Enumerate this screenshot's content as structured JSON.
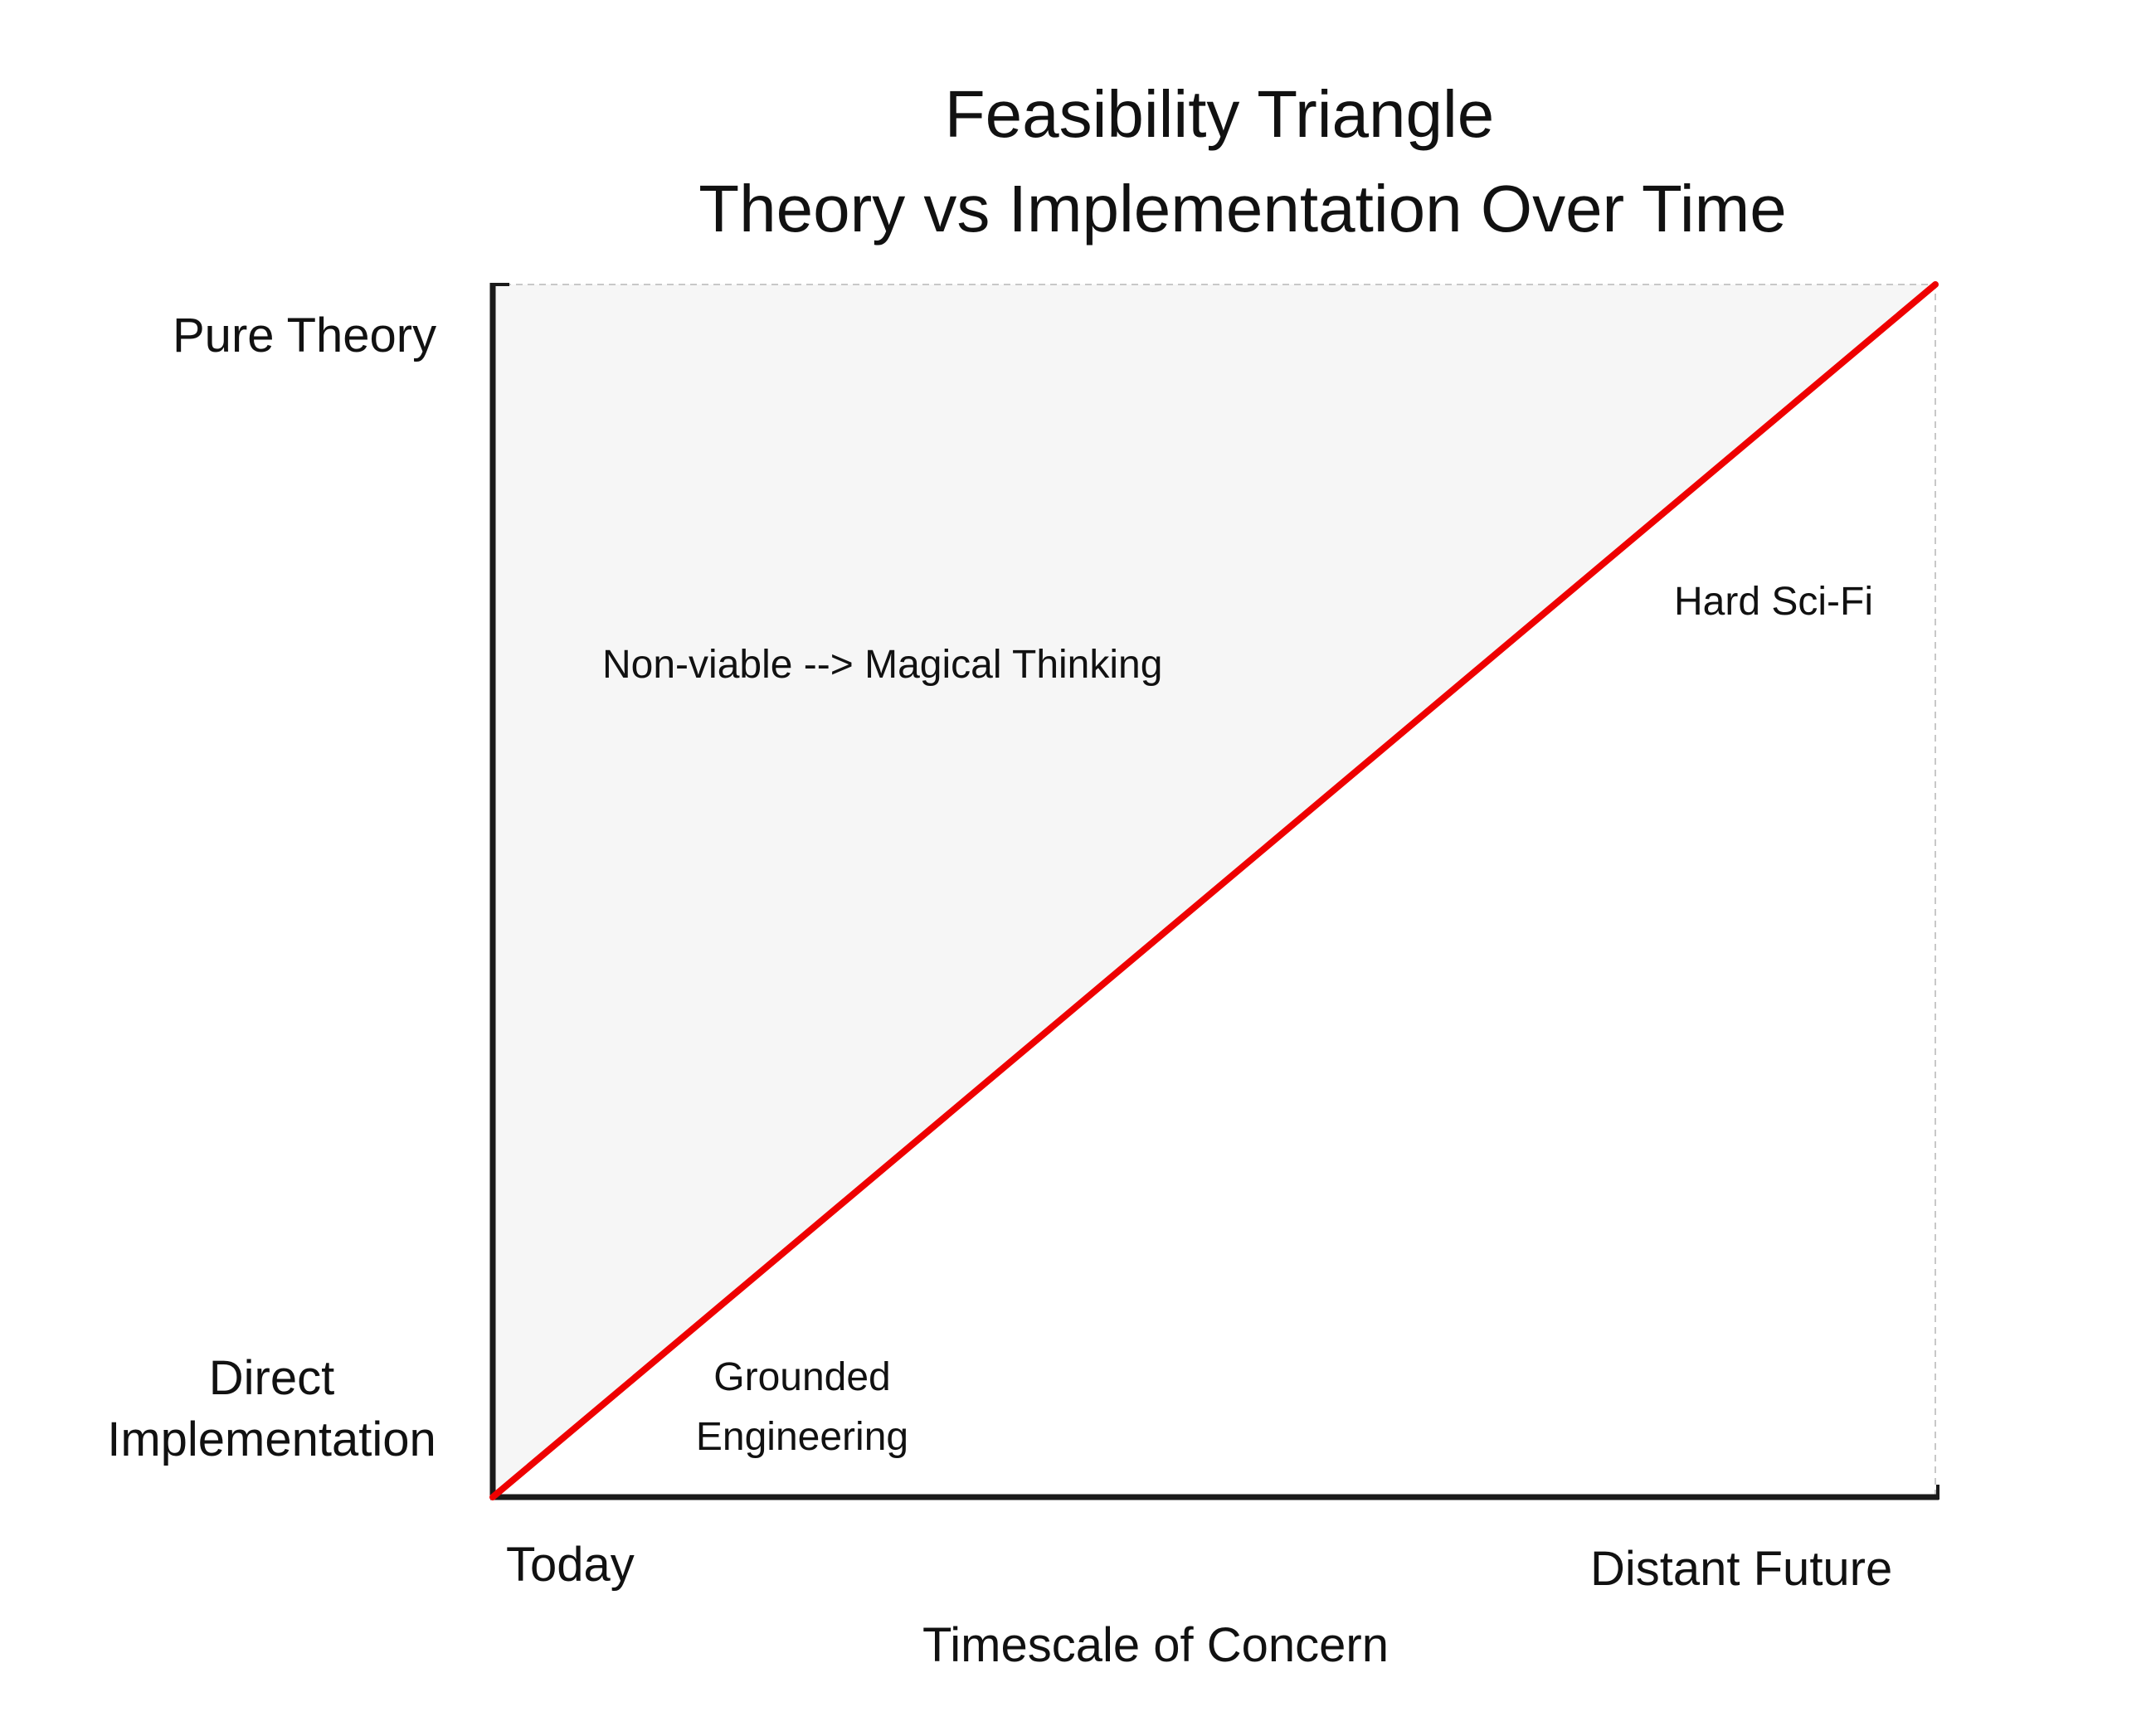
{
  "title": "Feasibility Triangle",
  "subtitle": "Theory vs Implementation Over Time",
  "y_axis": {
    "top_label": "Pure Theory",
    "bottom_label_line1": "Direct",
    "bottom_label_line2": "Implementation"
  },
  "x_axis": {
    "left_label": "Today",
    "right_label": "Distant Future",
    "title": "Timescale of Concern"
  },
  "regions": {
    "upper_left": "Non-viable --> Magical Thinking",
    "lower_right": "Hard Sci-Fi",
    "near_origin_line1": "Grounded",
    "near_origin_line2": "Engineering"
  },
  "colors": {
    "feasibility_line": "#ee0000",
    "non_viable_fill": "#f6f6f6",
    "axis": "#1a1a1a",
    "frame": "#c8c8c8"
  }
}
